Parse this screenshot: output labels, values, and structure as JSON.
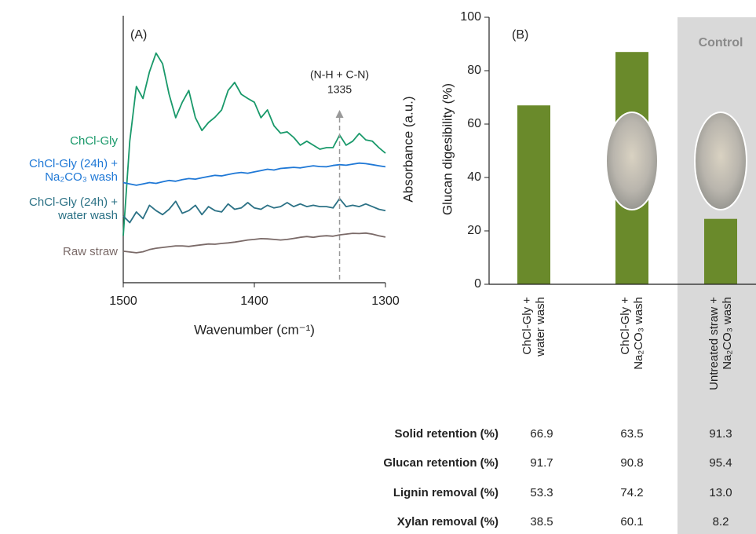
{
  "chart_data": [
    {
      "type": "line",
      "panel": "(A)",
      "x_label": "Wavenumber (cm⁻¹)",
      "y_label": "Absorbance (a.u.)",
      "x": [
        1500,
        1495,
        1490,
        1485,
        1480,
        1475,
        1470,
        1465,
        1460,
        1455,
        1450,
        1445,
        1440,
        1435,
        1430,
        1425,
        1420,
        1415,
        1410,
        1405,
        1400,
        1395,
        1390,
        1385,
        1380,
        1375,
        1370,
        1365,
        1360,
        1355,
        1350,
        1345,
        1340,
        1335,
        1330,
        1325,
        1320,
        1315,
        1310,
        1305,
        1300
      ],
      "xlim": [
        1500,
        1300
      ],
      "xticks": [
        1500,
        1400,
        1300
      ],
      "ylim": [
        0,
        100
      ],
      "series": [
        {
          "name": "ChCl-Gly",
          "color": "#19996a",
          "values": [
            17.6,
            53.0,
            73.5,
            69.0,
            79.0,
            86.0,
            82.0,
            70.6,
            61.8,
            67.6,
            72.0,
            61.8,
            57.0,
            60.0,
            62.0,
            64.7,
            72.0,
            75.0,
            70.6,
            69.0,
            67.6,
            61.8,
            64.7,
            58.8,
            56.0,
            56.5,
            54.4,
            51.5,
            53.0,
            51.5,
            50.0,
            50.6,
            50.6,
            55.3,
            51.5,
            53.0,
            55.9,
            53.5,
            53.0,
            50.6,
            48.5
          ]
        },
        {
          "name": "ChCl-Gly (24h) + Na₂CO₃ wash",
          "color": "#1f78d6",
          "values": [
            37.5,
            37.0,
            36.5,
            37.0,
            37.5,
            37.2,
            37.8,
            38.3,
            38.0,
            38.6,
            39.0,
            38.8,
            39.3,
            39.8,
            40.2,
            40.0,
            40.5,
            41.0,
            41.3,
            41.0,
            41.5,
            42.0,
            42.5,
            42.2,
            42.8,
            43.0,
            43.2,
            43.0,
            43.4,
            43.8,
            43.5,
            43.4,
            43.9,
            44.2,
            44.0,
            44.4,
            44.8,
            44.6,
            44.2,
            43.8,
            43.4
          ]
        },
        {
          "name": "ChCl-Gly (24h) + water wash",
          "color": "#2b7185",
          "values": [
            25.0,
            22.5,
            26.5,
            24.0,
            29.0,
            27.0,
            25.5,
            27.5,
            30.5,
            26.0,
            27.0,
            29.0,
            25.5,
            28.5,
            27.0,
            26.5,
            29.5,
            27.5,
            28.0,
            30.0,
            28.0,
            27.5,
            29.0,
            28.0,
            28.5,
            30.0,
            28.5,
            29.5,
            28.5,
            29.0,
            28.5,
            28.5,
            28.0,
            31.5,
            28.5,
            29.0,
            28.5,
            29.5,
            28.5,
            27.5,
            27.0
          ]
        },
        {
          "name": "Raw straw",
          "color": "#7a6a68",
          "values": [
            11.8,
            11.5,
            11.2,
            11.6,
            12.4,
            12.9,
            13.2,
            13.5,
            13.8,
            13.8,
            13.6,
            13.9,
            14.2,
            14.5,
            14.4,
            14.7,
            14.9,
            15.2,
            15.6,
            16.0,
            16.2,
            16.5,
            16.4,
            16.2,
            16.0,
            16.2,
            16.6,
            17.0,
            17.3,
            17.0,
            17.4,
            17.6,
            17.4,
            17.9,
            18.2,
            18.5,
            18.4,
            18.6,
            18.2,
            17.6,
            17.1
          ]
        }
      ],
      "marker": {
        "label": "(N-H + C-N)",
        "x": 1335
      }
    },
    {
      "type": "bar",
      "panel": "(B)",
      "y_label": "Glucan digesibility (%)",
      "categories": [
        "ChCl-Gly + water wash",
        "ChCl-Gly + Na₂CO₃ wash",
        "Untreated straw + Na₂CO₃ wash"
      ],
      "values": [
        67,
        87,
        24.5
      ],
      "color": "#6a8a2b",
      "ylim": [
        0,
        100
      ],
      "yticks": [
        0,
        20,
        40,
        60,
        80,
        100
      ],
      "shaded_label": "Control"
    }
  ],
  "table": {
    "rows": [
      {
        "label": "Solid retention (%)",
        "values": [
          "66.9",
          "63.5",
          "91.3"
        ]
      },
      {
        "label": "Glucan retention (%)",
        "values": [
          "91.7",
          "90.8",
          "95.4"
        ]
      },
      {
        "label": "Lignin removal (%)",
        "values": [
          "53.3",
          "74.2",
          "13.0"
        ]
      },
      {
        "label": "Xylan removal (%)",
        "values": [
          "38.5",
          "60.1",
          "8.2"
        ]
      }
    ]
  }
}
